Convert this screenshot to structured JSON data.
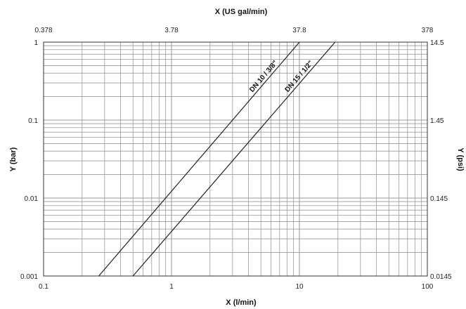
{
  "chart_data": {
    "type": "line",
    "x_scale": "log",
    "y_scale": "log",
    "grid": true,
    "xlabel": "X (l/min)",
    "ylabel": "Y (bar)",
    "x2label": "X (US gal/min)",
    "y2label": "Y (psi)",
    "xlim": [
      0.1,
      100
    ],
    "ylim": [
      0.001,
      1
    ],
    "x_ticks": [
      "0.1",
      "1",
      "10",
      "100"
    ],
    "y_ticks": [
      "0.001",
      "0.01",
      "0.1",
      "1"
    ],
    "x2_ticks": [
      "0.378",
      "3.78",
      "37.8",
      "378"
    ],
    "y2_ticks": [
      "0.0145",
      "0.145",
      "1.45",
      "14.5"
    ],
    "series": [
      {
        "name": "DN 10 / 3/8\"",
        "x": [
          0.27,
          10
        ],
        "y": [
          0.001,
          1
        ]
      },
      {
        "name": "DN 15 / 1/2\"",
        "x": [
          0.5,
          19
        ],
        "y": [
          0.001,
          1
        ]
      }
    ],
    "colors": {
      "line": "#222222",
      "grid": "#9a9a9a",
      "frame": "#333333"
    }
  }
}
